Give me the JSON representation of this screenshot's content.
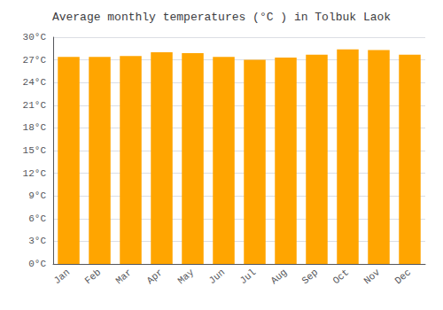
{
  "chart_data": {
    "type": "bar",
    "title": "Average monthly temperatures (°C ) in Tolbuk Laok",
    "categories": [
      "Jan",
      "Feb",
      "Mar",
      "Apr",
      "May",
      "Jun",
      "Jul",
      "Aug",
      "Sep",
      "Oct",
      "Nov",
      "Dec"
    ],
    "values": [
      27.4,
      27.4,
      27.5,
      28.0,
      27.9,
      27.4,
      27.0,
      27.3,
      27.7,
      28.4,
      28.3,
      27.7
    ],
    "color": "#FFA500",
    "ylim": [
      0,
      30
    ],
    "yticks": [
      {
        "value": 0,
        "label": "0°C"
      },
      {
        "value": 3,
        "label": "3°C"
      },
      {
        "value": 6,
        "label": "6°C"
      },
      {
        "value": 9,
        "label": "9°C"
      },
      {
        "value": 12,
        "label": "12°C"
      },
      {
        "value": 15,
        "label": "15°C"
      },
      {
        "value": 18,
        "label": "18°C"
      },
      {
        "value": 21,
        "label": "21°C"
      },
      {
        "value": 24,
        "label": "24°C"
      },
      {
        "value": 27,
        "label": "27°C"
      },
      {
        "value": 30,
        "label": "30°C"
      }
    ],
    "grid": true
  }
}
